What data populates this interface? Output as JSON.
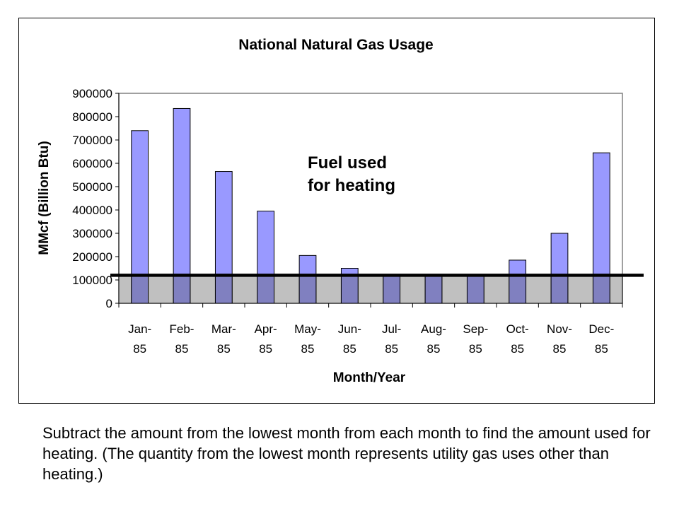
{
  "chart_data": {
    "type": "bar",
    "title": "National Natural Gas Usage",
    "xlabel": "Month/Year",
    "ylabel": "MMcf (Billion Btu)",
    "categories": [
      [
        "Jan-",
        "85"
      ],
      [
        "Feb-",
        "85"
      ],
      [
        "Mar-",
        "85"
      ],
      [
        "Apr-",
        "85"
      ],
      [
        "May-",
        "85"
      ],
      [
        "Jun-",
        "85"
      ],
      [
        "Jul-",
        "85"
      ],
      [
        "Aug-",
        "85"
      ],
      [
        "Sep-",
        "85"
      ],
      [
        "Oct-",
        "85"
      ],
      [
        "Nov-",
        "85"
      ],
      [
        "Dec-",
        "85"
      ]
    ],
    "values": [
      740000,
      835000,
      565000,
      395000,
      205000,
      150000,
      120000,
      120000,
      120000,
      185000,
      300000,
      645000
    ],
    "ylim": [
      0,
      900000
    ],
    "yticks": [
      "900000",
      "800000",
      "700000",
      "600000",
      "500000",
      "400000",
      "300000",
      "200000",
      "100000",
      "0"
    ],
    "baseline_value": 120000,
    "annotation": [
      "Fuel used",
      "for heating"
    ],
    "colors": {
      "bar_fill": "#9999ff",
      "bar_stroke": "#000000",
      "baseline_band": "#c0c0c0",
      "baseline_line": "#000000",
      "plot_border": "#808080",
      "overlap_fill": "#8080c0"
    }
  },
  "caption": "Subtract the amount from the lowest month from each month to find the amount used for heating.  (The quantity from the lowest month represents utility gas uses other than heating.)"
}
